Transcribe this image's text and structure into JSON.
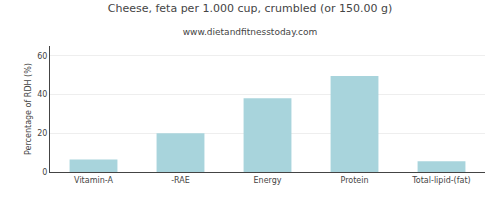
{
  "chart_data": {
    "type": "bar",
    "title": "Cheese, feta per 1.000 cup, crumbled (or 150.00 g)",
    "subtitle": "www.dietandfitnesstoday.com",
    "ylabel": "Percentage of RDH (%)",
    "categories": [
      "Vitamin-A",
      "-RAE",
      "Energy",
      "Protein",
      "Total-lipid-(fat)"
    ],
    "values": [
      6.5,
      20.0,
      38.0,
      49.5,
      5.5
    ],
    "color": "#A8D4DC",
    "ylim": [
      0,
      65
    ],
    "yticks": [
      0,
      20,
      40,
      60
    ],
    "grid": true
  }
}
